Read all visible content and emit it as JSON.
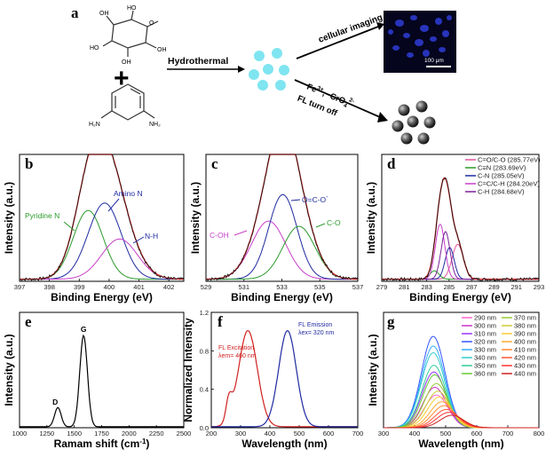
{
  "scheme": {
    "label": "a",
    "hydrothermal": "Hydrothermal",
    "cellular_imaging": "cellular imaging",
    "fe": "Fe",
    "fe_sup": "3+",
    "cro": "CrO",
    "cro_sub": "4",
    "cro_sup": "2-",
    "fl_turn_off": "FL turn off",
    "scale_bar": "100 μm",
    "amine_left": "H₂N",
    "amine_right": "NH₂",
    "oh_labels": [
      "OH",
      "HO",
      "HO",
      "OH",
      "OH"
    ],
    "ring_o": "O",
    "plus": "+",
    "comma": ","
  },
  "chart_data": [
    {
      "id": "b",
      "type": "line",
      "label": "b",
      "xlabel": "Binding Energy (eV)",
      "ylabel": "Intensity (a.u.)",
      "xlim": [
        397,
        402.5
      ],
      "ylim": [
        0,
        1.2
      ],
      "xticks": [
        397,
        398,
        399,
        400,
        401,
        402
      ],
      "annotations": [
        {
          "text": "Pyridine N",
          "color": "#2a9a2a"
        },
        {
          "text": "Amino N",
          "color": "#1f2aa0"
        },
        {
          "text": "N-H",
          "color": "#1f2aa0"
        }
      ],
      "series": [
        {
          "color": "#2a9a2a",
          "peak": {
            "center": 399.3,
            "height": 0.65,
            "width": 0.5
          }
        },
        {
          "color": "#1f2aa0",
          "peak": {
            "center": 399.85,
            "height": 0.72,
            "width": 0.55
          }
        },
        {
          "color": "#c83fc8",
          "peak": {
            "center": 400.35,
            "height": 0.38,
            "width": 0.6
          }
        },
        {
          "color": "#e03030",
          "envelope": true
        },
        {
          "color": "#111111",
          "raw": true
        }
      ]
    },
    {
      "id": "c",
      "type": "line",
      "label": "c",
      "xlabel": "Binding Energy (eV)",
      "ylabel": "Intensity (a.u.)",
      "xlim": [
        529,
        537
      ],
      "ylim": [
        0,
        1.2
      ],
      "xticks": [
        529,
        531,
        533,
        535,
        537
      ],
      "annotations": [
        {
          "text": "O=C-O",
          "sup": "-",
          "color": "#1f2aa0"
        },
        {
          "text": "C-OH",
          "color": "#c83fc8"
        },
        {
          "text": "C-O",
          "color": "#2a9a2a"
        }
      ],
      "series": [
        {
          "color": "#c83fc8",
          "peak": {
            "center": 532.3,
            "height": 0.55,
            "width": 0.9
          }
        },
        {
          "color": "#1f2aa0",
          "peak": {
            "center": 533.05,
            "height": 0.8,
            "width": 0.75
          }
        },
        {
          "color": "#2a9a2a",
          "peak": {
            "center": 533.9,
            "height": 0.5,
            "width": 0.85
          }
        },
        {
          "color": "#e03030",
          "envelope": true
        },
        {
          "color": "#111111",
          "raw": true
        }
      ]
    },
    {
      "id": "d",
      "type": "line",
      "label": "d",
      "xlabel": "Binding Energy (eV)",
      "ylabel": "Intensity (a.u.)",
      "xlim": [
        279,
        293
      ],
      "ylim": [
        0,
        1.2
      ],
      "xticks": [
        279,
        281,
        283,
        285,
        287,
        289,
        291,
        293
      ],
      "legend": [
        {
          "text": "C=O/C-O (285.77eV)",
          "color": "#e0559a"
        },
        {
          "text": "C≡N (283.69eV)",
          "color": "#2a9a2a"
        },
        {
          "text": "C-N (285.05eV)",
          "color": "#1f2aa0"
        },
        {
          "text": "C=C/C-H (284.20eV)",
          "color": "#c83fc8"
        },
        {
          "text": "C-H (284.68eV)",
          "color": "#7a1f9a"
        }
      ],
      "series": [
        {
          "color": "#e0559a",
          "peak": {
            "center": 285.77,
            "height": 0.33,
            "width": 0.5
          }
        },
        {
          "color": "#2a9a2a",
          "peak": {
            "center": 283.69,
            "height": 0.08,
            "width": 0.4
          }
        },
        {
          "color": "#1f2aa0",
          "peak": {
            "center": 285.05,
            "height": 0.3,
            "width": 0.4
          }
        },
        {
          "color": "#c83fc8",
          "peak": {
            "center": 284.2,
            "height": 0.52,
            "width": 0.42
          }
        },
        {
          "color": "#7a1f9a",
          "peak": {
            "center": 284.68,
            "height": 0.45,
            "width": 0.4
          }
        },
        {
          "color": "#e03030",
          "envelope": true
        },
        {
          "color": "#111111",
          "raw": true
        }
      ]
    },
    {
      "id": "e",
      "type": "line",
      "label": "e",
      "xlabel": "Ramam shift (cm",
      "xlabel_sup": "-1",
      "xlabel_end": ")",
      "ylabel": "Intensity (a.u.)",
      "xlim": [
        1000,
        2500
      ],
      "ylim": [
        0,
        1.2
      ],
      "xticks": [
        1000,
        1250,
        1500,
        1750,
        2000,
        2250,
        2500
      ],
      "annotations": [
        {
          "text": "D"
        },
        {
          "text": "G"
        }
      ],
      "series": [
        {
          "color": "#000000",
          "peaks": [
            {
              "center": 1350,
              "height": 0.2,
              "width": 30
            },
            {
              "center": 1585,
              "height": 0.95,
              "width": 35
            }
          ]
        }
      ]
    },
    {
      "id": "f",
      "type": "line",
      "label": "f",
      "xlabel": "Wavelength (nm)",
      "ylabel": "Normalized Intensity",
      "xlim": [
        200,
        700
      ],
      "ylim": [
        0,
        1.2
      ],
      "xticks": [
        200,
        300,
        400,
        500,
        600,
        700
      ],
      "yticks": [
        0.0,
        0.4,
        0.8,
        1.2
      ],
      "ytick_labels": [
        "0.0",
        "0.4",
        "0.8",
        "1.2"
      ],
      "annotations": [
        {
          "text": "FL Excitation",
          "color": "#d02020"
        },
        {
          "text": "λem= 460 nm",
          "color": "#d02020"
        },
        {
          "text": "FL Emission",
          "color": "#1f2aa0"
        },
        {
          "text": "λex= 320 nm",
          "color": "#1f2aa0"
        }
      ],
      "series": [
        {
          "name": "FL Excitation",
          "color": "#d02020",
          "peaks": [
            {
              "center": 260,
              "height": 0.22,
              "width": 10
            },
            {
              "center": 325,
              "height": 1.0,
              "width": 32
            }
          ]
        },
        {
          "name": "FL Emission",
          "color": "#1f2aa0",
          "peaks": [
            {
              "center": 460,
              "height": 1.0,
              "width": 30
            }
          ]
        }
      ]
    },
    {
      "id": "g",
      "type": "line",
      "label": "g",
      "xlabel": "Wavelength (nm)",
      "ylabel": "Intensity (a.u.)",
      "xlim": [
        300,
        800
      ],
      "ylim": [
        0,
        1.2
      ],
      "xticks": [
        300,
        400,
        500,
        600,
        700,
        800
      ],
      "series": [
        {
          "name": "290 nm",
          "color": "#ff66cc",
          "center": 470,
          "height": 0.34
        },
        {
          "name": "300 nm",
          "color": "#cc33cc",
          "center": 465,
          "height": 0.42
        },
        {
          "name": "310 nm",
          "color": "#9933ff",
          "center": 462,
          "height": 0.58
        },
        {
          "name": "320 nm",
          "color": "#3355ff",
          "center": 460,
          "height": 0.95
        },
        {
          "name": "330 nm",
          "color": "#33aaff",
          "center": 460,
          "height": 0.85
        },
        {
          "name": "340 nm",
          "color": "#33cccc",
          "center": 460,
          "height": 0.78
        },
        {
          "name": "350 nm",
          "color": "#33cc99",
          "center": 462,
          "height": 0.65
        },
        {
          "name": "360 nm",
          "color": "#66cc33",
          "center": 465,
          "height": 0.55
        },
        {
          "name": "370 nm",
          "color": "#99cc33",
          "center": 470,
          "height": 0.46
        },
        {
          "name": "380 nm",
          "color": "#cccc33",
          "center": 475,
          "height": 0.38
        },
        {
          "name": "390 nm",
          "color": "#ffcc33",
          "center": 480,
          "height": 0.32
        },
        {
          "name": "400 nm",
          "color": "#ffaa33",
          "center": 488,
          "height": 0.27
        },
        {
          "name": "410 nm",
          "color": "#ff8833",
          "center": 495,
          "height": 0.23
        },
        {
          "name": "420 nm",
          "color": "#ff5533",
          "center": 502,
          "height": 0.19
        },
        {
          "name": "430 nm",
          "color": "#ff3333",
          "center": 510,
          "height": 0.16
        },
        {
          "name": "440 nm",
          "color": "#cc2222",
          "center": 520,
          "height": 0.13
        }
      ]
    }
  ]
}
